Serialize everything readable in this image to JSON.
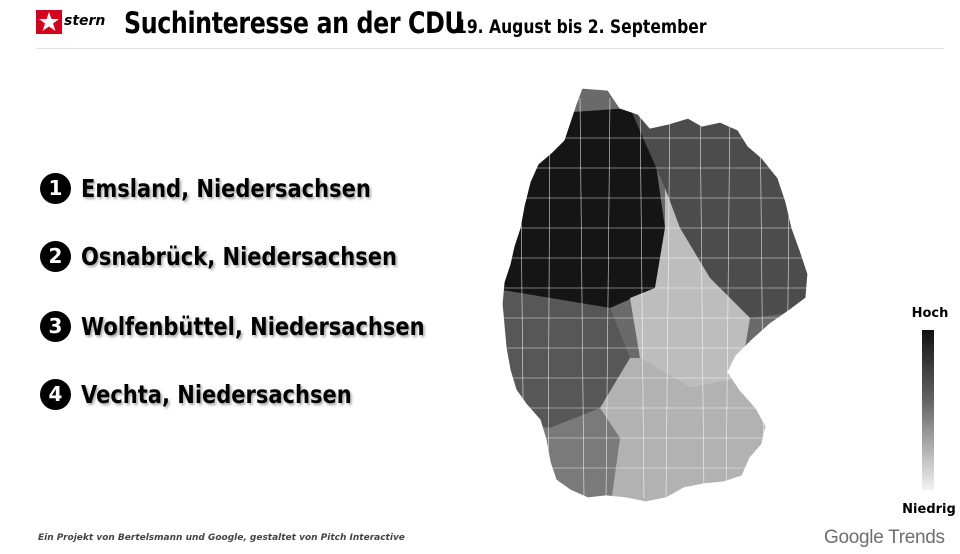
{
  "header": {
    "logo_text": "stern",
    "title": "Suchinteresse an der CDU",
    "subtitle": "19. August bis 2. September"
  },
  "ranking": [
    {
      "rank": "1",
      "label": "Emsland, Niedersachsen"
    },
    {
      "rank": "2",
      "label": "Osnabrück, Niedersachsen"
    },
    {
      "rank": "3",
      "label": "Wolfenbüttel, Niedersachsen"
    },
    {
      "rank": "4",
      "label": "Vechta, Niedersachsen"
    }
  ],
  "map": {
    "regions": [
      {
        "name": "north-west",
        "intensity": 0.95,
        "color": "#141414"
      },
      {
        "name": "north-east",
        "intensity": 0.75,
        "color": "#4a4a4a"
      },
      {
        "name": "west",
        "intensity": 0.7,
        "color": "#555555"
      },
      {
        "name": "central-east",
        "intensity": 0.3,
        "color": "#bdbdbd"
      },
      {
        "name": "south-west",
        "intensity": 0.55,
        "color": "#7a7a7a"
      },
      {
        "name": "south-east",
        "intensity": 0.35,
        "color": "#b0b0b0"
      }
    ]
  },
  "legend": {
    "high_label": "Hoch",
    "low_label": "Niedrig",
    "high_color": "#111111",
    "low_color": "#f2f2f2"
  },
  "footer": {
    "credit": "Ein Projekt von Bertelsmann und Google, gestaltet von Pitch Interactive",
    "brand": "Google Trends"
  }
}
